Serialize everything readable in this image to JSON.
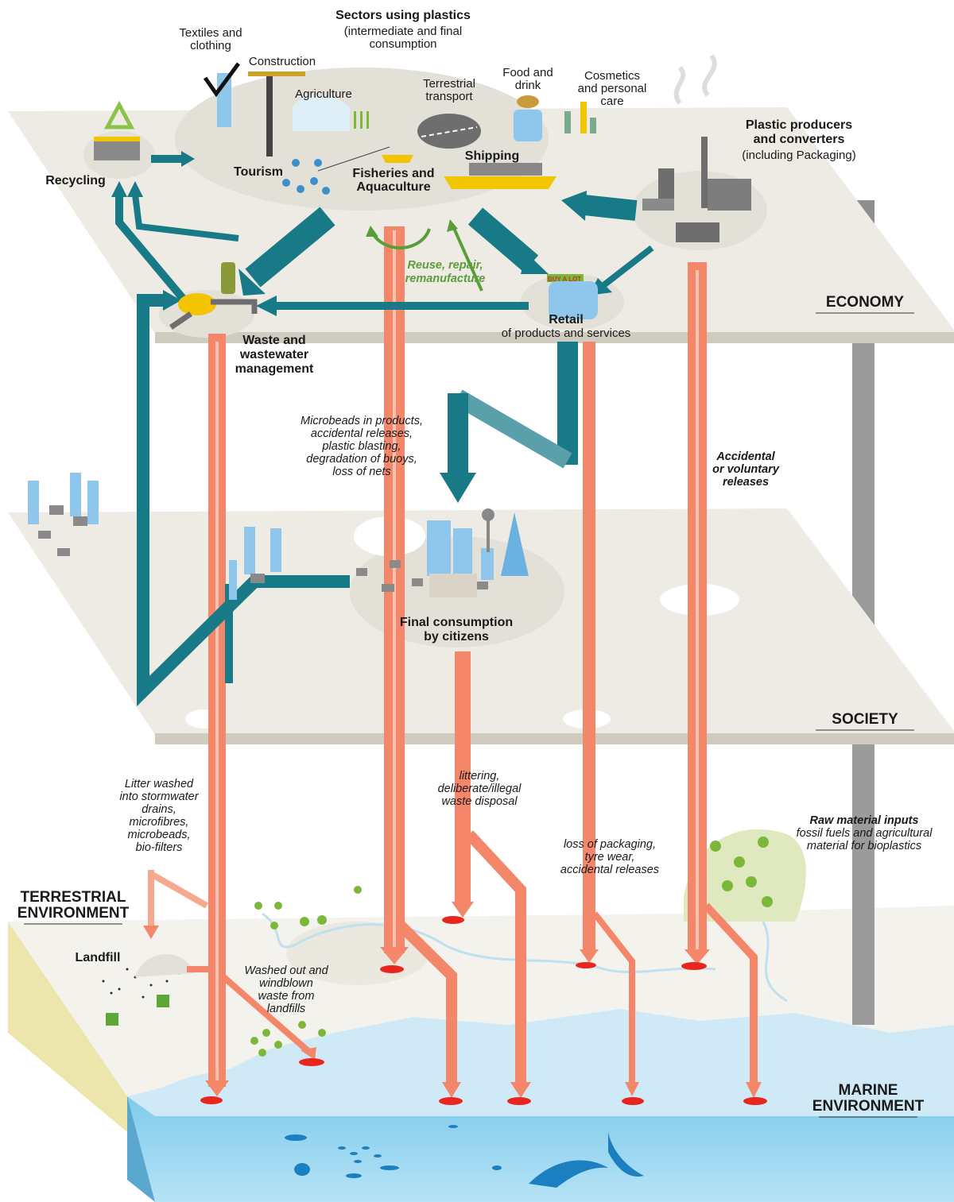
{
  "header": {
    "title": [
      "Sectors using plastics"
    ],
    "subtitle": [
      "(intermediate and final",
      "consumption"
    ]
  },
  "sectors": {
    "textiles": [
      "Textiles and",
      "clothing"
    ],
    "construction": [
      "Construction"
    ],
    "agriculture": [
      "Agriculture"
    ],
    "transport": [
      "Terrestrial",
      "transport"
    ],
    "food": [
      "Food and",
      "drink"
    ],
    "cosmetics": [
      "Cosmetics",
      "and personal",
      "care"
    ],
    "tourism": [
      "Tourism"
    ],
    "fisheries": [
      "Fisheries and",
      "Aquaculture"
    ],
    "shipping": [
      "Shipping"
    ]
  },
  "nodes": {
    "recycling": [
      "Recycling"
    ],
    "producers": [
      "Plastic producers",
      "and converters"
    ],
    "producers_note": [
      "(including Packaging)"
    ],
    "waste": [
      "Waste and",
      "wastewater",
      "management"
    ],
    "retail": [
      "Retail"
    ],
    "retail_note": [
      "of products and services"
    ],
    "retail_sign": [
      "BUY A LOT"
    ],
    "consumption": [
      "Final consumption",
      "by citizens"
    ],
    "landfill": [
      "Landfill"
    ]
  },
  "flows": {
    "reuse": [
      "Reuse, repair,",
      "remanufacture"
    ],
    "microbeads": [
      "Microbeads in products,",
      "accidental releases,",
      "plastic blasting,",
      "degradation of buoys,",
      "loss of nets"
    ],
    "accidental": [
      "Accidental",
      "or voluntary",
      "releases"
    ],
    "stormwater": [
      "Litter washed",
      "into stormwater",
      "drains,",
      "microfibres,",
      "microbeads,",
      "bio-filters"
    ],
    "littering": [
      "littering,",
      "deliberate/illegal",
      "waste disposal"
    ],
    "packaging": [
      "loss of packaging,",
      "tyre wear,",
      "accidental releases"
    ],
    "raw_title": [
      "Raw material inputs"
    ],
    "raw_note": [
      "fossil fuels and agricultural",
      "material for bioplastics"
    ],
    "landfill_waste": [
      "Washed out and",
      "windblown",
      "waste from",
      "landfills"
    ]
  },
  "layers": {
    "economy": [
      "ECONOMY"
    ],
    "society": [
      "SOCIETY"
    ],
    "terrestrial": [
      "TERRESTRIAL",
      "ENVIRONMENT"
    ],
    "marine": [
      "MARINE",
      "ENVIRONMENT"
    ]
  }
}
